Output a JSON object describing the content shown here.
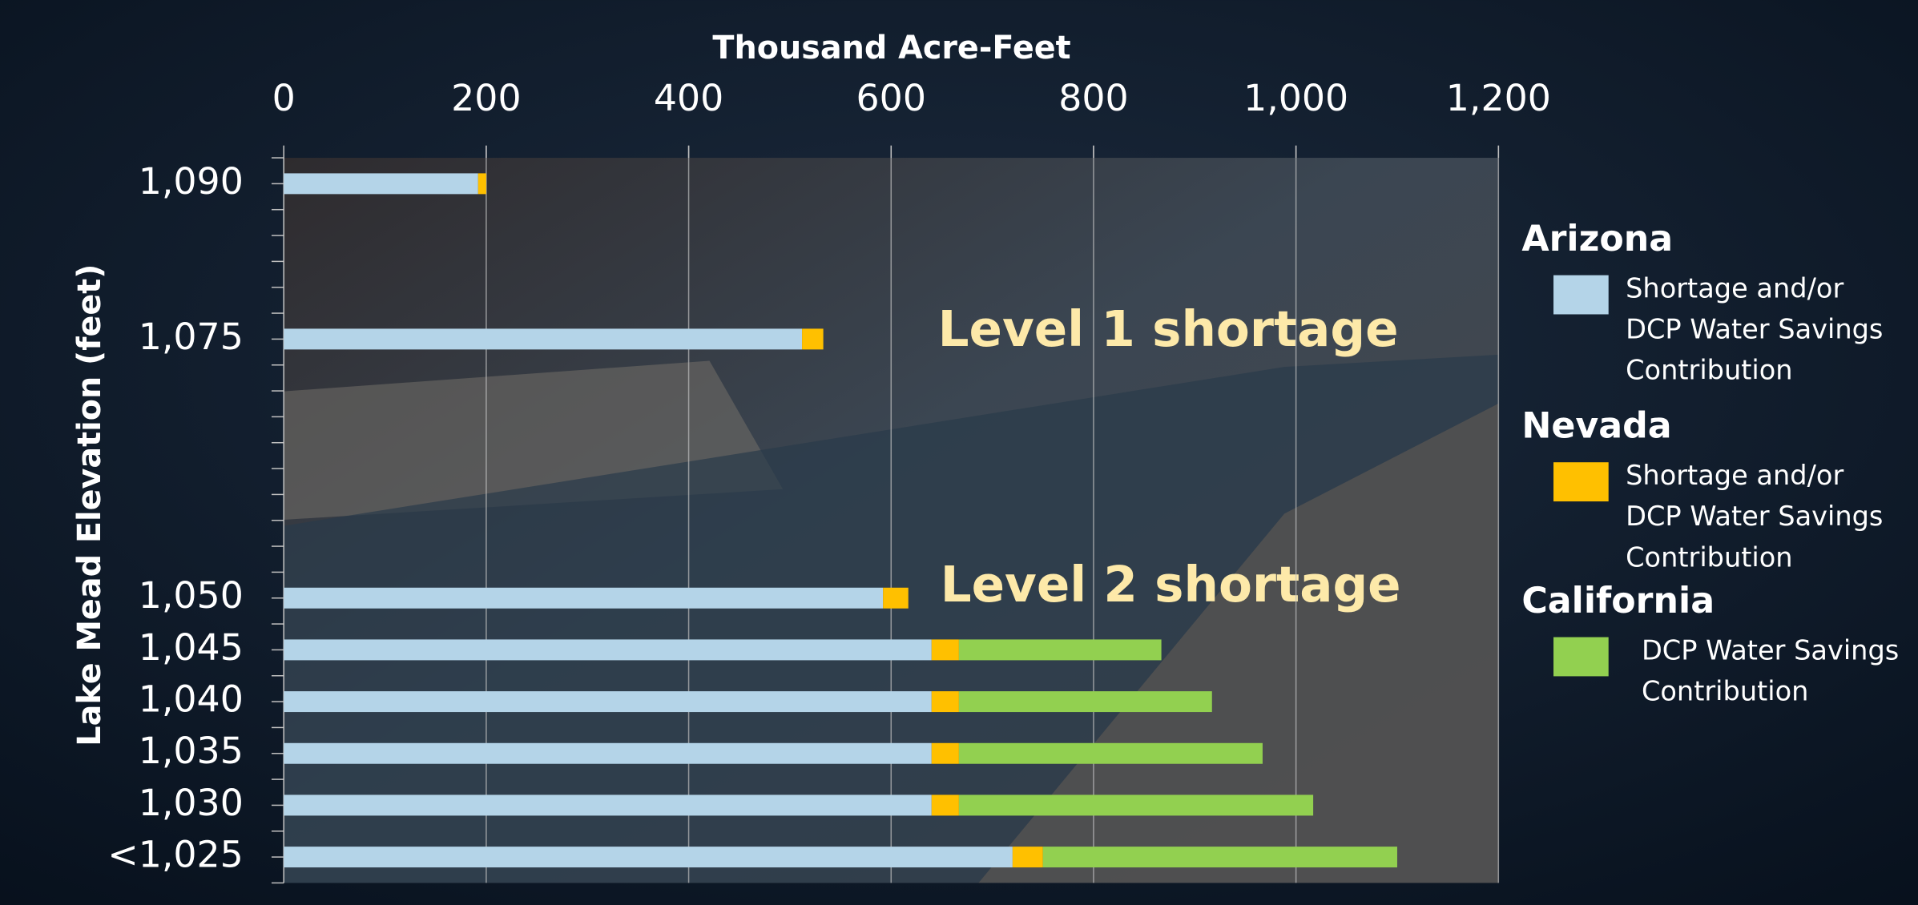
{
  "chart_data": {
    "type": "bar",
    "orientation": "horizontal",
    "stacked": true,
    "x_label": "Thousand Acre-Feet",
    "y_label": "Lake Mead Elevation (feet)",
    "categories": [
      "1,090",
      null,
      null,
      "1,075",
      null,
      null,
      null,
      null,
      "1,050",
      "1,045",
      "1,040",
      "1,035",
      "1,030",
      "<1,025"
    ],
    "series": [
      {
        "name": "Arizona",
        "color": "#b4d4e8",
        "description": [
          "Shortage and/or",
          "DCP Water Savings",
          "Contribution"
        ],
        "values": [
          192,
          null,
          null,
          512,
          null,
          null,
          null,
          null,
          592,
          640,
          640,
          640,
          640,
          720
        ]
      },
      {
        "name": "Nevada",
        "color": "#ffc000",
        "description": [
          "Shortage and/or",
          "DCP Water Savings",
          "Contribution"
        ],
        "values": [
          8,
          null,
          null,
          21,
          null,
          null,
          null,
          null,
          25,
          27,
          27,
          27,
          27,
          30
        ]
      },
      {
        "name": "California",
        "color": "#92d050",
        "description": [
          "DCP Water Savings",
          "Contribution"
        ],
        "values": [
          null,
          null,
          null,
          null,
          null,
          null,
          null,
          null,
          null,
          200,
          250,
          300,
          350,
          350
        ]
      }
    ],
    "xlim": [
      0,
      1200
    ],
    "xticks": [
      0,
      200,
      400,
      600,
      800,
      {
        "value": 1000,
        "label": "1,000"
      },
      {
        "value": 1200,
        "label": "1,200"
      }
    ],
    "grid": true,
    "annotations": [
      "Level 1 shortage",
      "Level 2 shortage"
    ]
  }
}
